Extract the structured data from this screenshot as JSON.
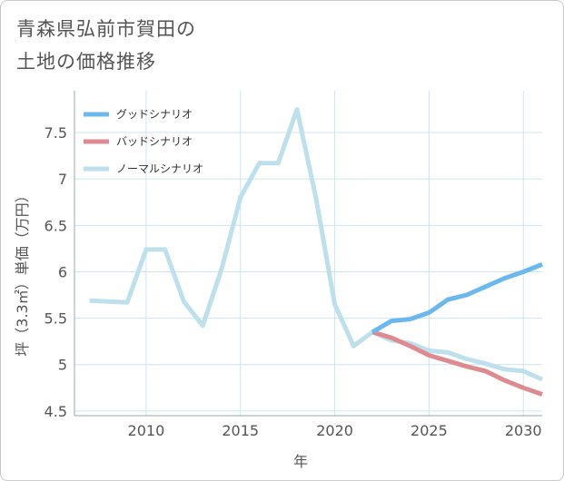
{
  "title_lines": [
    "青森県弘前市賀田の",
    "土地の価格推移"
  ],
  "colors": {
    "good": "#6bb8ee",
    "bad": "#de8a90",
    "normal": "#bde0ec",
    "grid": "#cde4f1",
    "frame": "#9aa8b4"
  },
  "chart_data": {
    "type": "line",
    "title": "青森県弘前市賀田の土地の価格推移",
    "xlabel": "年",
    "ylabel": "坪（3.3㎡）単価（万円）",
    "xlim": [
      2006.2,
      2031
    ],
    "ylim": [
      4.45,
      7.95
    ],
    "x_ticks": [
      2010,
      2015,
      2020,
      2025,
      2030
    ],
    "y_ticks": [
      4.5,
      5,
      5.5,
      6,
      6.5,
      7,
      7.5
    ],
    "y_tick_labels": [
      "4.5",
      "5",
      "5.5",
      "6",
      "6.5",
      "7",
      "7.5"
    ],
    "grid": true,
    "legend_position": "top-left",
    "series": [
      {
        "name": "ノーマルシナリオ",
        "key": "normal",
        "x": [
          2007,
          2008,
          2009,
          2010,
          2011,
          2012,
          2013,
          2014,
          2015,
          2016,
          2017,
          2018,
          2019,
          2020,
          2021,
          2022,
          2023,
          2024,
          2025,
          2026,
          2027,
          2028,
          2029,
          2030,
          2031
        ],
        "y": [
          5.69,
          5.68,
          5.67,
          6.24,
          6.24,
          5.68,
          5.42,
          6.03,
          6.8,
          7.17,
          7.17,
          7.75,
          6.8,
          5.65,
          5.2,
          5.35,
          5.26,
          5.23,
          5.15,
          5.13,
          5.06,
          5.01,
          4.95,
          4.93,
          4.84
        ]
      },
      {
        "name": "バッドシナリオ",
        "key": "bad",
        "x": [
          2022,
          2023,
          2024,
          2025,
          2026,
          2027,
          2028,
          2029,
          2030,
          2031
        ],
        "y": [
          5.35,
          5.29,
          5.2,
          5.1,
          5.04,
          4.98,
          4.93,
          4.83,
          4.75,
          4.68
        ]
      },
      {
        "name": "グッドシナリオ",
        "key": "good",
        "x": [
          2022,
          2023,
          2024,
          2025,
          2026,
          2027,
          2028,
          2029,
          2030,
          2031
        ],
        "y": [
          5.35,
          5.47,
          5.49,
          5.56,
          5.7,
          5.75,
          5.84,
          5.93,
          6.0,
          6.08
        ]
      }
    ],
    "legend": [
      {
        "label": "グッドシナリオ",
        "key": "good"
      },
      {
        "label": "バッドシナリオ",
        "key": "bad"
      },
      {
        "label": "ノーマルシナリオ",
        "key": "normal"
      }
    ]
  }
}
